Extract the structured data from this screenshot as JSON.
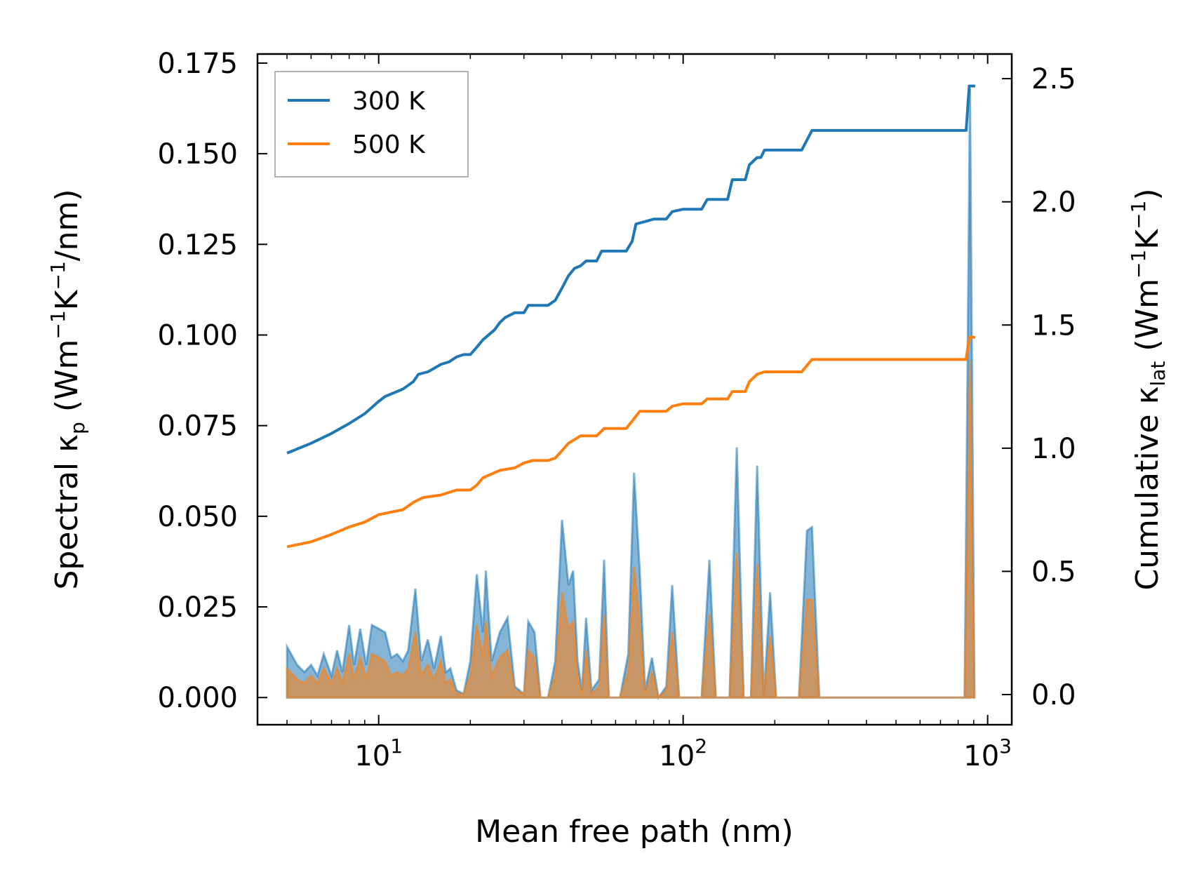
{
  "chart_data": {
    "type": "line",
    "title": "",
    "xlabel": "Mean free path (nm)",
    "xscale": "log",
    "xlim": [
      4,
      1200
    ],
    "x_ticks": [
      10,
      100,
      1000
    ],
    "x_tick_labels": [
      {
        "base": "10",
        "exp": "1"
      },
      {
        "base": "10",
        "exp": "2"
      },
      {
        "base": "10",
        "exp": "3"
      }
    ],
    "ylabel_left": {
      "pre": "Spectral κ",
      "sub": "p",
      "mid": " (Wm",
      "s1": "−1",
      "k": "K",
      "s2": "−1",
      "post": "/nm)"
    },
    "ylabel_right": {
      "pre": "Cumulative κ",
      "sub": "lat",
      "mid": " (Wm",
      "s1": "−1",
      "k": "K",
      "s2": "−1",
      "post": ")"
    },
    "ylim_left": [
      -0.0075,
      0.1775
    ],
    "ylim_right": [
      -0.1225,
      2.6
    ],
    "y_left_ticks": [
      "0.000",
      "0.025",
      "0.050",
      "0.075",
      "0.100",
      "0.125",
      "0.150",
      "0.175"
    ],
    "y_right_ticks": [
      "0.0",
      "0.5",
      "1.0",
      "1.5",
      "2.0",
      "2.5"
    ],
    "legend": {
      "position": "top-left",
      "entries": [
        "300 K",
        "500 K"
      ]
    },
    "colors": {
      "300 K": "#1f77b4",
      "500 K": "#ff7f0e"
    },
    "cumulative": [
      {
        "name": "300 K",
        "axis": "right",
        "points": [
          [
            5,
            0.98
          ],
          [
            6,
            1.02
          ],
          [
            7,
            1.06
          ],
          [
            8,
            1.1
          ],
          [
            9,
            1.14
          ],
          [
            10,
            1.19
          ],
          [
            10.5,
            1.21
          ],
          [
            12,
            1.24
          ],
          [
            13,
            1.27
          ],
          [
            13.5,
            1.3
          ],
          [
            14.5,
            1.31
          ],
          [
            15,
            1.32
          ],
          [
            16,
            1.34
          ],
          [
            17,
            1.35
          ],
          [
            18,
            1.37
          ],
          [
            19,
            1.38
          ],
          [
            20,
            1.38
          ],
          [
            21,
            1.41
          ],
          [
            22,
            1.44
          ],
          [
            24,
            1.48
          ],
          [
            25,
            1.51
          ],
          [
            26,
            1.53
          ],
          [
            28,
            1.55
          ],
          [
            30,
            1.55
          ],
          [
            31,
            1.58
          ],
          [
            32,
            1.58
          ],
          [
            36,
            1.58
          ],
          [
            38,
            1.6
          ],
          [
            40,
            1.65
          ],
          [
            42,
            1.7
          ],
          [
            44,
            1.73
          ],
          [
            46,
            1.74
          ],
          [
            48,
            1.76
          ],
          [
            52,
            1.76
          ],
          [
            54,
            1.8
          ],
          [
            60,
            1.8
          ],
          [
            65,
            1.8
          ],
          [
            68,
            1.84
          ],
          [
            70,
            1.91
          ],
          [
            75,
            1.92
          ],
          [
            80,
            1.93
          ],
          [
            88,
            1.93
          ],
          [
            92,
            1.96
          ],
          [
            100,
            1.97
          ],
          [
            115,
            1.97
          ],
          [
            120,
            2.01
          ],
          [
            140,
            2.01
          ],
          [
            145,
            2.09
          ],
          [
            160,
            2.09
          ],
          [
            165,
            2.15
          ],
          [
            175,
            2.18
          ],
          [
            180,
            2.18
          ],
          [
            185,
            2.21
          ],
          [
            195,
            2.21
          ],
          [
            245,
            2.21
          ],
          [
            265,
            2.29
          ],
          [
            850,
            2.29
          ],
          [
            870,
            2.47
          ],
          [
            910,
            2.47
          ]
        ]
      },
      {
        "name": "500 K",
        "axis": "right",
        "points": [
          [
            5,
            0.6
          ],
          [
            6,
            0.62
          ],
          [
            7,
            0.65
          ],
          [
            8,
            0.68
          ],
          [
            9,
            0.7
          ],
          [
            10,
            0.73
          ],
          [
            12,
            0.75
          ],
          [
            13,
            0.78
          ],
          [
            14,
            0.8
          ],
          [
            16,
            0.81
          ],
          [
            18,
            0.83
          ],
          [
            20,
            0.83
          ],
          [
            21,
            0.85
          ],
          [
            22,
            0.88
          ],
          [
            25,
            0.91
          ],
          [
            28,
            0.92
          ],
          [
            30,
            0.94
          ],
          [
            32,
            0.95
          ],
          [
            36,
            0.95
          ],
          [
            38,
            0.96
          ],
          [
            40,
            0.99
          ],
          [
            42,
            1.02
          ],
          [
            46,
            1.05
          ],
          [
            52,
            1.05
          ],
          [
            55,
            1.08
          ],
          [
            65,
            1.08
          ],
          [
            68,
            1.11
          ],
          [
            72,
            1.15
          ],
          [
            80,
            1.15
          ],
          [
            88,
            1.15
          ],
          [
            92,
            1.17
          ],
          [
            100,
            1.18
          ],
          [
            115,
            1.18
          ],
          [
            120,
            1.2
          ],
          [
            140,
            1.2
          ],
          [
            145,
            1.23
          ],
          [
            160,
            1.23
          ],
          [
            165,
            1.27
          ],
          [
            175,
            1.3
          ],
          [
            185,
            1.31
          ],
          [
            195,
            1.31
          ],
          [
            245,
            1.31
          ],
          [
            265,
            1.36
          ],
          [
            850,
            1.36
          ],
          [
            870,
            1.45
          ],
          [
            910,
            1.45
          ]
        ]
      }
    ],
    "spectral": [
      {
        "name": "300 K",
        "axis": "left",
        "points": [
          [
            5,
            0.014
          ],
          [
            5.4,
            0.009
          ],
          [
            5.7,
            0.007
          ],
          [
            6,
            0.009
          ],
          [
            6.3,
            0.006
          ],
          [
            6.6,
            0.012
          ],
          [
            7,
            0.006
          ],
          [
            7.3,
            0.013
          ],
          [
            7.6,
            0.007
          ],
          [
            8,
            0.02
          ],
          [
            8.3,
            0.009
          ],
          [
            8.7,
            0.019
          ],
          [
            9.1,
            0.009
          ],
          [
            9.5,
            0.02
          ],
          [
            10,
            0.019
          ],
          [
            10.5,
            0.018
          ],
          [
            11,
            0.011
          ],
          [
            11.5,
            0.012
          ],
          [
            12,
            0.01
          ],
          [
            12.5,
            0.013
          ],
          [
            13.2,
            0.03
          ],
          [
            13.8,
            0.01
          ],
          [
            14.5,
            0.016
          ],
          [
            15.2,
            0.008
          ],
          [
            16,
            0.017
          ],
          [
            16.6,
            0.007
          ],
          [
            17.2,
            0.008
          ],
          [
            18,
            0.002
          ],
          [
            19,
            0.001
          ],
          [
            20,
            0.01
          ],
          [
            21,
            0.034
          ],
          [
            22,
            0.018
          ],
          [
            22.5,
            0.035
          ],
          [
            23.5,
            0.01
          ],
          [
            25,
            0.018
          ],
          [
            26.5,
            0.022
          ],
          [
            28,
            0.003
          ],
          [
            30,
            0.001
          ],
          [
            31,
            0.021
          ],
          [
            32.5,
            0.018
          ],
          [
            34,
            0.0
          ],
          [
            36,
            0.0
          ],
          [
            38,
            0.01
          ],
          [
            40,
            0.049
          ],
          [
            42,
            0.031
          ],
          [
            43.5,
            0.035
          ],
          [
            45,
            0.01
          ],
          [
            46.5,
            0.002
          ],
          [
            48,
            0.022
          ],
          [
            50,
            0.002
          ],
          [
            53,
            0.005
          ],
          [
            55,
            0.038
          ],
          [
            57,
            0.0
          ],
          [
            62,
            0.0
          ],
          [
            66,
            0.012
          ],
          [
            69,
            0.062
          ],
          [
            72,
            0.035
          ],
          [
            75,
            0.002
          ],
          [
            79,
            0.011
          ],
          [
            83,
            0.0
          ],
          [
            88,
            0.003
          ],
          [
            92,
            0.031
          ],
          [
            97,
            0.0
          ],
          [
            115,
            0.0
          ],
          [
            122,
            0.038
          ],
          [
            128,
            0.0
          ],
          [
            142,
            0.0
          ],
          [
            150,
            0.069
          ],
          [
            158,
            0.0
          ],
          [
            167,
            0.0
          ],
          [
            175,
            0.064
          ],
          [
            184,
            0.0
          ],
          [
            193,
            0.029
          ],
          [
            202,
            0.0
          ],
          [
            240,
            0.0
          ],
          [
            255,
            0.046
          ],
          [
            265,
            0.047
          ],
          [
            280,
            0.0
          ],
          [
            840,
            0.0
          ],
          [
            875,
            0.168
          ],
          [
            905,
            0.0
          ]
        ]
      },
      {
        "name": "500 K",
        "axis": "left",
        "points": [
          [
            5,
            0.008
          ],
          [
            5.4,
            0.005
          ],
          [
            5.7,
            0.004
          ],
          [
            6,
            0.006
          ],
          [
            6.3,
            0.004
          ],
          [
            6.6,
            0.008
          ],
          [
            7,
            0.004
          ],
          [
            7.3,
            0.008
          ],
          [
            7.6,
            0.004
          ],
          [
            8,
            0.012
          ],
          [
            8.3,
            0.005
          ],
          [
            8.7,
            0.011
          ],
          [
            9.1,
            0.005
          ],
          [
            9.5,
            0.012
          ],
          [
            10,
            0.011
          ],
          [
            10.5,
            0.01
          ],
          [
            11,
            0.006
          ],
          [
            11.5,
            0.007
          ],
          [
            12,
            0.006
          ],
          [
            12.5,
            0.008
          ],
          [
            13.2,
            0.018
          ],
          [
            13.8,
            0.006
          ],
          [
            14.5,
            0.009
          ],
          [
            15.2,
            0.005
          ],
          [
            16,
            0.01
          ],
          [
            16.6,
            0.004
          ],
          [
            17.2,
            0.005
          ],
          [
            18,
            0.001
          ],
          [
            19,
            0.001
          ],
          [
            20,
            0.006
          ],
          [
            21,
            0.02
          ],
          [
            22,
            0.011
          ],
          [
            22.5,
            0.021
          ],
          [
            23.5,
            0.006
          ],
          [
            25,
            0.011
          ],
          [
            26.5,
            0.013
          ],
          [
            28,
            0.002
          ],
          [
            30,
            0.001
          ],
          [
            31,
            0.013
          ],
          [
            32.5,
            0.011
          ],
          [
            34,
            0.0
          ],
          [
            36,
            0.0
          ],
          [
            38,
            0.006
          ],
          [
            40,
            0.029
          ],
          [
            42,
            0.019
          ],
          [
            43.5,
            0.021
          ],
          [
            45,
            0.006
          ],
          [
            46.5,
            0.001
          ],
          [
            48,
            0.013
          ],
          [
            50,
            0.001
          ],
          [
            53,
            0.003
          ],
          [
            55,
            0.023
          ],
          [
            57,
            0.0
          ],
          [
            62,
            0.0
          ],
          [
            66,
            0.007
          ],
          [
            69,
            0.036
          ],
          [
            72,
            0.021
          ],
          [
            75,
            0.001
          ],
          [
            79,
            0.007
          ],
          [
            83,
            0.0
          ],
          [
            88,
            0.002
          ],
          [
            92,
            0.018
          ],
          [
            97,
            0.0
          ],
          [
            115,
            0.0
          ],
          [
            122,
            0.023
          ],
          [
            128,
            0.0
          ],
          [
            142,
            0.0
          ],
          [
            150,
            0.04
          ],
          [
            158,
            0.0
          ],
          [
            167,
            0.0
          ],
          [
            175,
            0.037
          ],
          [
            184,
            0.0
          ],
          [
            193,
            0.017
          ],
          [
            202,
            0.0
          ],
          [
            240,
            0.0
          ],
          [
            255,
            0.027
          ],
          [
            265,
            0.027
          ],
          [
            280,
            0.0
          ],
          [
            840,
            0.0
          ],
          [
            875,
            0.093
          ],
          [
            905,
            0.0
          ]
        ]
      }
    ]
  }
}
